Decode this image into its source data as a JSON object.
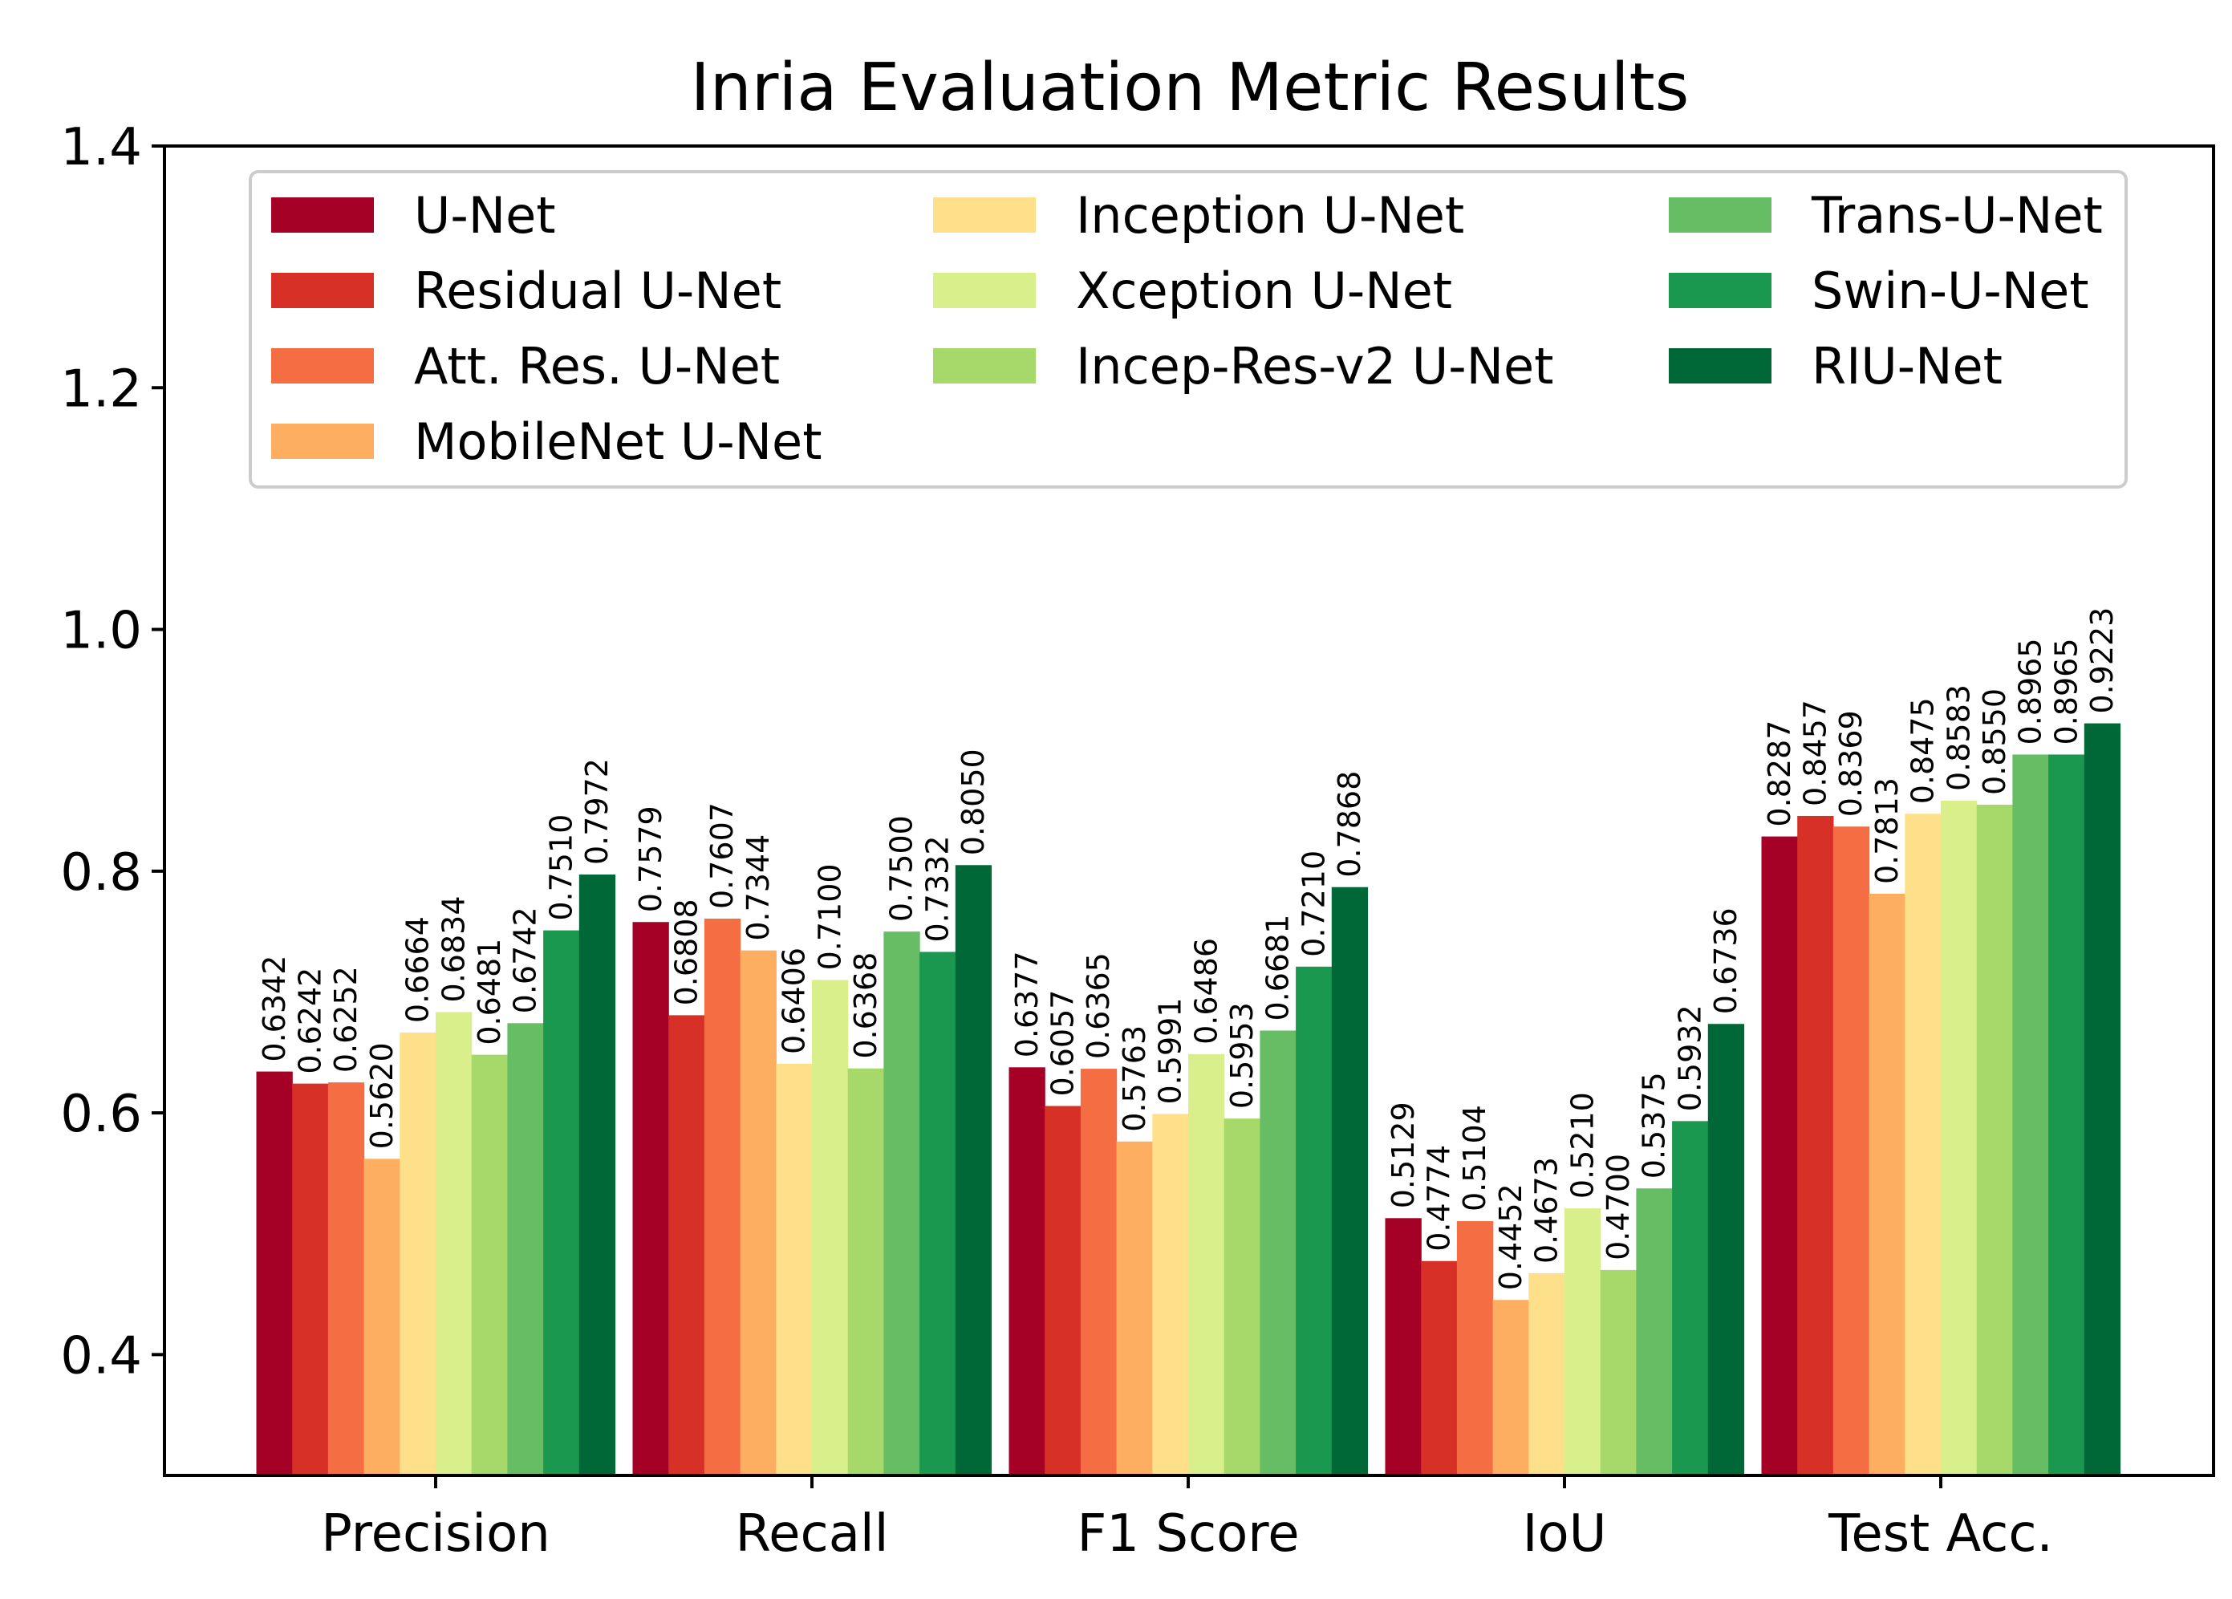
{
  "chart_data": {
    "type": "bar",
    "title": "Inria Evaluation Metric Results",
    "xlabel": "",
    "ylabel": "",
    "ylim": [
      0.3,
      1.4
    ],
    "yticks": [
      0.4,
      0.6,
      0.8,
      1.0,
      1.2,
      1.4
    ],
    "ytick_labels": [
      "0.4",
      "0.6",
      "0.8",
      "1.0",
      "1.2",
      "1.4"
    ],
    "legend_position": "top",
    "categories": [
      "Precision",
      "Recall",
      "F1 Score",
      "IoU",
      "Test Acc."
    ],
    "series": [
      {
        "name": "U-Net",
        "color": "#a50026",
        "values": [
          0.6342,
          0.7579,
          0.6377,
          0.5129,
          0.8287
        ],
        "labels": [
          "0.6342",
          "0.7579",
          "0.6377",
          "0.5129",
          "0.8287"
        ]
      },
      {
        "name": "Residual U-Net",
        "color": "#d73027",
        "values": [
          0.6242,
          0.6808,
          0.6057,
          0.4774,
          0.8457
        ],
        "labels": [
          "0.6242",
          "0.6808",
          "0.6057",
          "0.4774",
          "0.8457"
        ]
      },
      {
        "name": "Att. Res. U-Net",
        "color": "#f46d43",
        "values": [
          0.6252,
          0.7607,
          0.6365,
          0.5104,
          0.8369
        ],
        "labels": [
          "0.6252",
          "0.7607",
          "0.6365",
          "0.5104",
          "0.8369"
        ]
      },
      {
        "name": "MobileNet U-Net",
        "color": "#fdae61",
        "values": [
          0.562,
          0.7344,
          0.5763,
          0.4452,
          0.7813
        ],
        "labels": [
          "0.5620",
          "0.7344",
          "0.5763",
          "0.4452",
          "0.7813"
        ]
      },
      {
        "name": "Inception U-Net",
        "color": "#fee08b",
        "values": [
          0.6664,
          0.6406,
          0.5991,
          0.4673,
          0.8475
        ],
        "labels": [
          "0.6664",
          "0.6406",
          "0.5991",
          "0.4673",
          "0.8475"
        ]
      },
      {
        "name": "Xception U-Net",
        "color": "#d9ef8b",
        "values": [
          0.6834,
          0.71,
          0.6486,
          0.521,
          0.8583
        ],
        "labels": [
          "0.6834",
          "0.7100",
          "0.6486",
          "0.5210",
          "0.8583"
        ]
      },
      {
        "name": "Incep-Res-v2 U-Net",
        "color": "#a6d96a",
        "values": [
          0.6481,
          0.6368,
          0.5953,
          0.47,
          0.855
        ],
        "labels": [
          "0.6481",
          "0.6368",
          "0.5953",
          "0.4700",
          "0.8550"
        ]
      },
      {
        "name": "Trans-U-Net",
        "color": "#66bd63",
        "values": [
          0.6742,
          0.75,
          0.6681,
          0.5375,
          0.8965
        ],
        "labels": [
          "0.6742",
          "0.7500",
          "0.6681",
          "0.5375",
          "0.8965"
        ]
      },
      {
        "name": "Swin-U-Net",
        "color": "#1a9850",
        "values": [
          0.751,
          0.7332,
          0.721,
          0.5932,
          0.8965
        ],
        "labels": [
          "0.7510",
          "0.7332",
          "0.7210",
          "0.5932",
          "0.8965"
        ]
      },
      {
        "name": "RIU-Net",
        "color": "#006837",
        "values": [
          0.7972,
          0.805,
          0.7868,
          0.6736,
          0.9223
        ],
        "labels": [
          "0.7972",
          "0.8050",
          "0.7868",
          "0.6736",
          "0.9223"
        ]
      }
    ]
  }
}
